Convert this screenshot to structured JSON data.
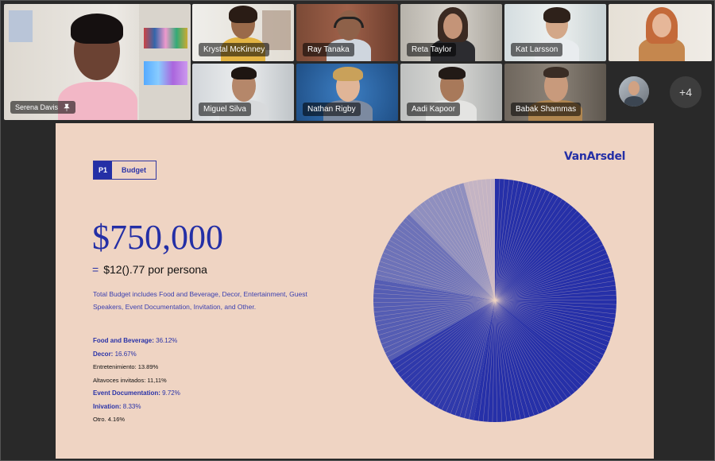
{
  "participants": [
    {
      "name": "Serena Davis",
      "pinned": true
    },
    {
      "name": "Krystal McKinney"
    },
    {
      "name": "Ray Tanaka"
    },
    {
      "name": "Reta Taylor"
    },
    {
      "name": "Kat Larsson"
    },
    {
      "name": ""
    },
    {
      "name": "Miguel Silva"
    },
    {
      "name": "Nathan Rigby"
    },
    {
      "name": "Aadi Kapoor"
    },
    {
      "name": "Babak Shammas"
    }
  ],
  "overflow_count": "+4",
  "slide": {
    "tag_number": "P1",
    "tag_label": "Budget",
    "brand": "VanArsdel",
    "amount": "$750,000",
    "per_person_eq": "=",
    "per_person": "$12().77 por persona",
    "description": "Total Budget includes Food and Beverage, Decor, Entertainment, Guest Speakers, Event Documentation, Invitation, and Other.",
    "legend": [
      {
        "label": "Food and Beverage:",
        "value": "36.12%",
        "style": "bold"
      },
      {
        "label": "Decor:",
        "value": "16.67%",
        "style": "bold"
      },
      {
        "label": "Entretenimiento:",
        "value": "13.89%",
        "style": "plain"
      },
      {
        "label": "Altavoces invitados:",
        "value": "11,11%",
        "style": "plain"
      },
      {
        "label": "Event Documentation:",
        "value": "9.72%",
        "style": "bold"
      },
      {
        "label": "Inivation:",
        "value": "8.33%",
        "style": "bold"
      },
      {
        "label": "Otro.",
        "value": "4.16%",
        "style": "plain"
      }
    ]
  },
  "chart_data": {
    "type": "pie",
    "slices": [
      {
        "label": "Food and Beverage",
        "value": 36.12
      },
      {
        "label": "Decor",
        "value": 16.67
      },
      {
        "label": "Entretenimiento",
        "value": 13.89
      },
      {
        "label": "Altavoces invitados",
        "value": 11.11
      },
      {
        "label": "Event Documentation",
        "value": 9.72
      },
      {
        "label": "Inivation",
        "value": 8.33
      },
      {
        "label": "Otro",
        "value": 4.16
      }
    ],
    "colors": [
      "#2630a8",
      "#2630a8",
      "#2f39ab",
      "#555db3",
      "#6d72b8",
      "#8f8fbf",
      "#c4b4c4"
    ],
    "stroke": "#efd4c3"
  }
}
